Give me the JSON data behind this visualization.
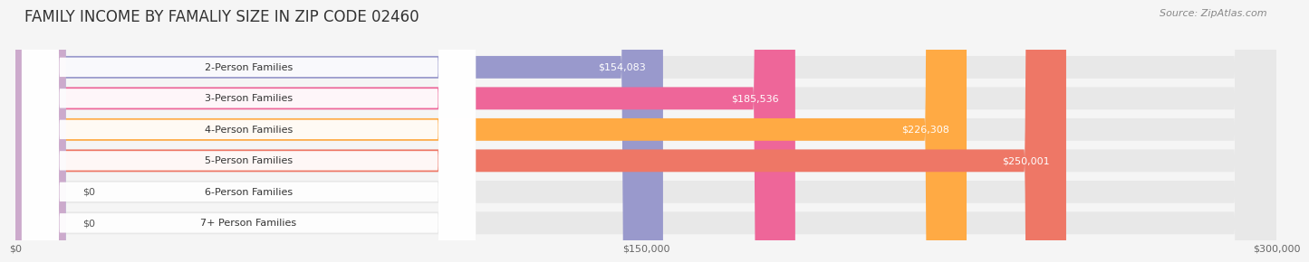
{
  "title": "FAMILY INCOME BY FAMALIY SIZE IN ZIP CODE 02460",
  "source": "Source: ZipAtlas.com",
  "categories": [
    "2-Person Families",
    "3-Person Families",
    "4-Person Families",
    "5-Person Families",
    "6-Person Families",
    "7+ Person Families"
  ],
  "values": [
    154083,
    185536,
    226308,
    250001,
    0,
    0
  ],
  "bar_colors": [
    "#9999cc",
    "#ee6699",
    "#ffaa44",
    "#ee7766",
    "#aabbdd",
    "#ccaacc"
  ],
  "value_labels": [
    "$154,083",
    "$185,536",
    "$226,308",
    "$250,001",
    "$0",
    "$0"
  ],
  "xmax": 300000,
  "xtick_labels": [
    "$0",
    "$150,000",
    "$300,000"
  ],
  "background_color": "#f5f5f5",
  "bar_bg_color": "#e8e8e8",
  "title_fontsize": 12,
  "source_fontsize": 8,
  "label_fontsize": 8,
  "value_fontsize": 8
}
